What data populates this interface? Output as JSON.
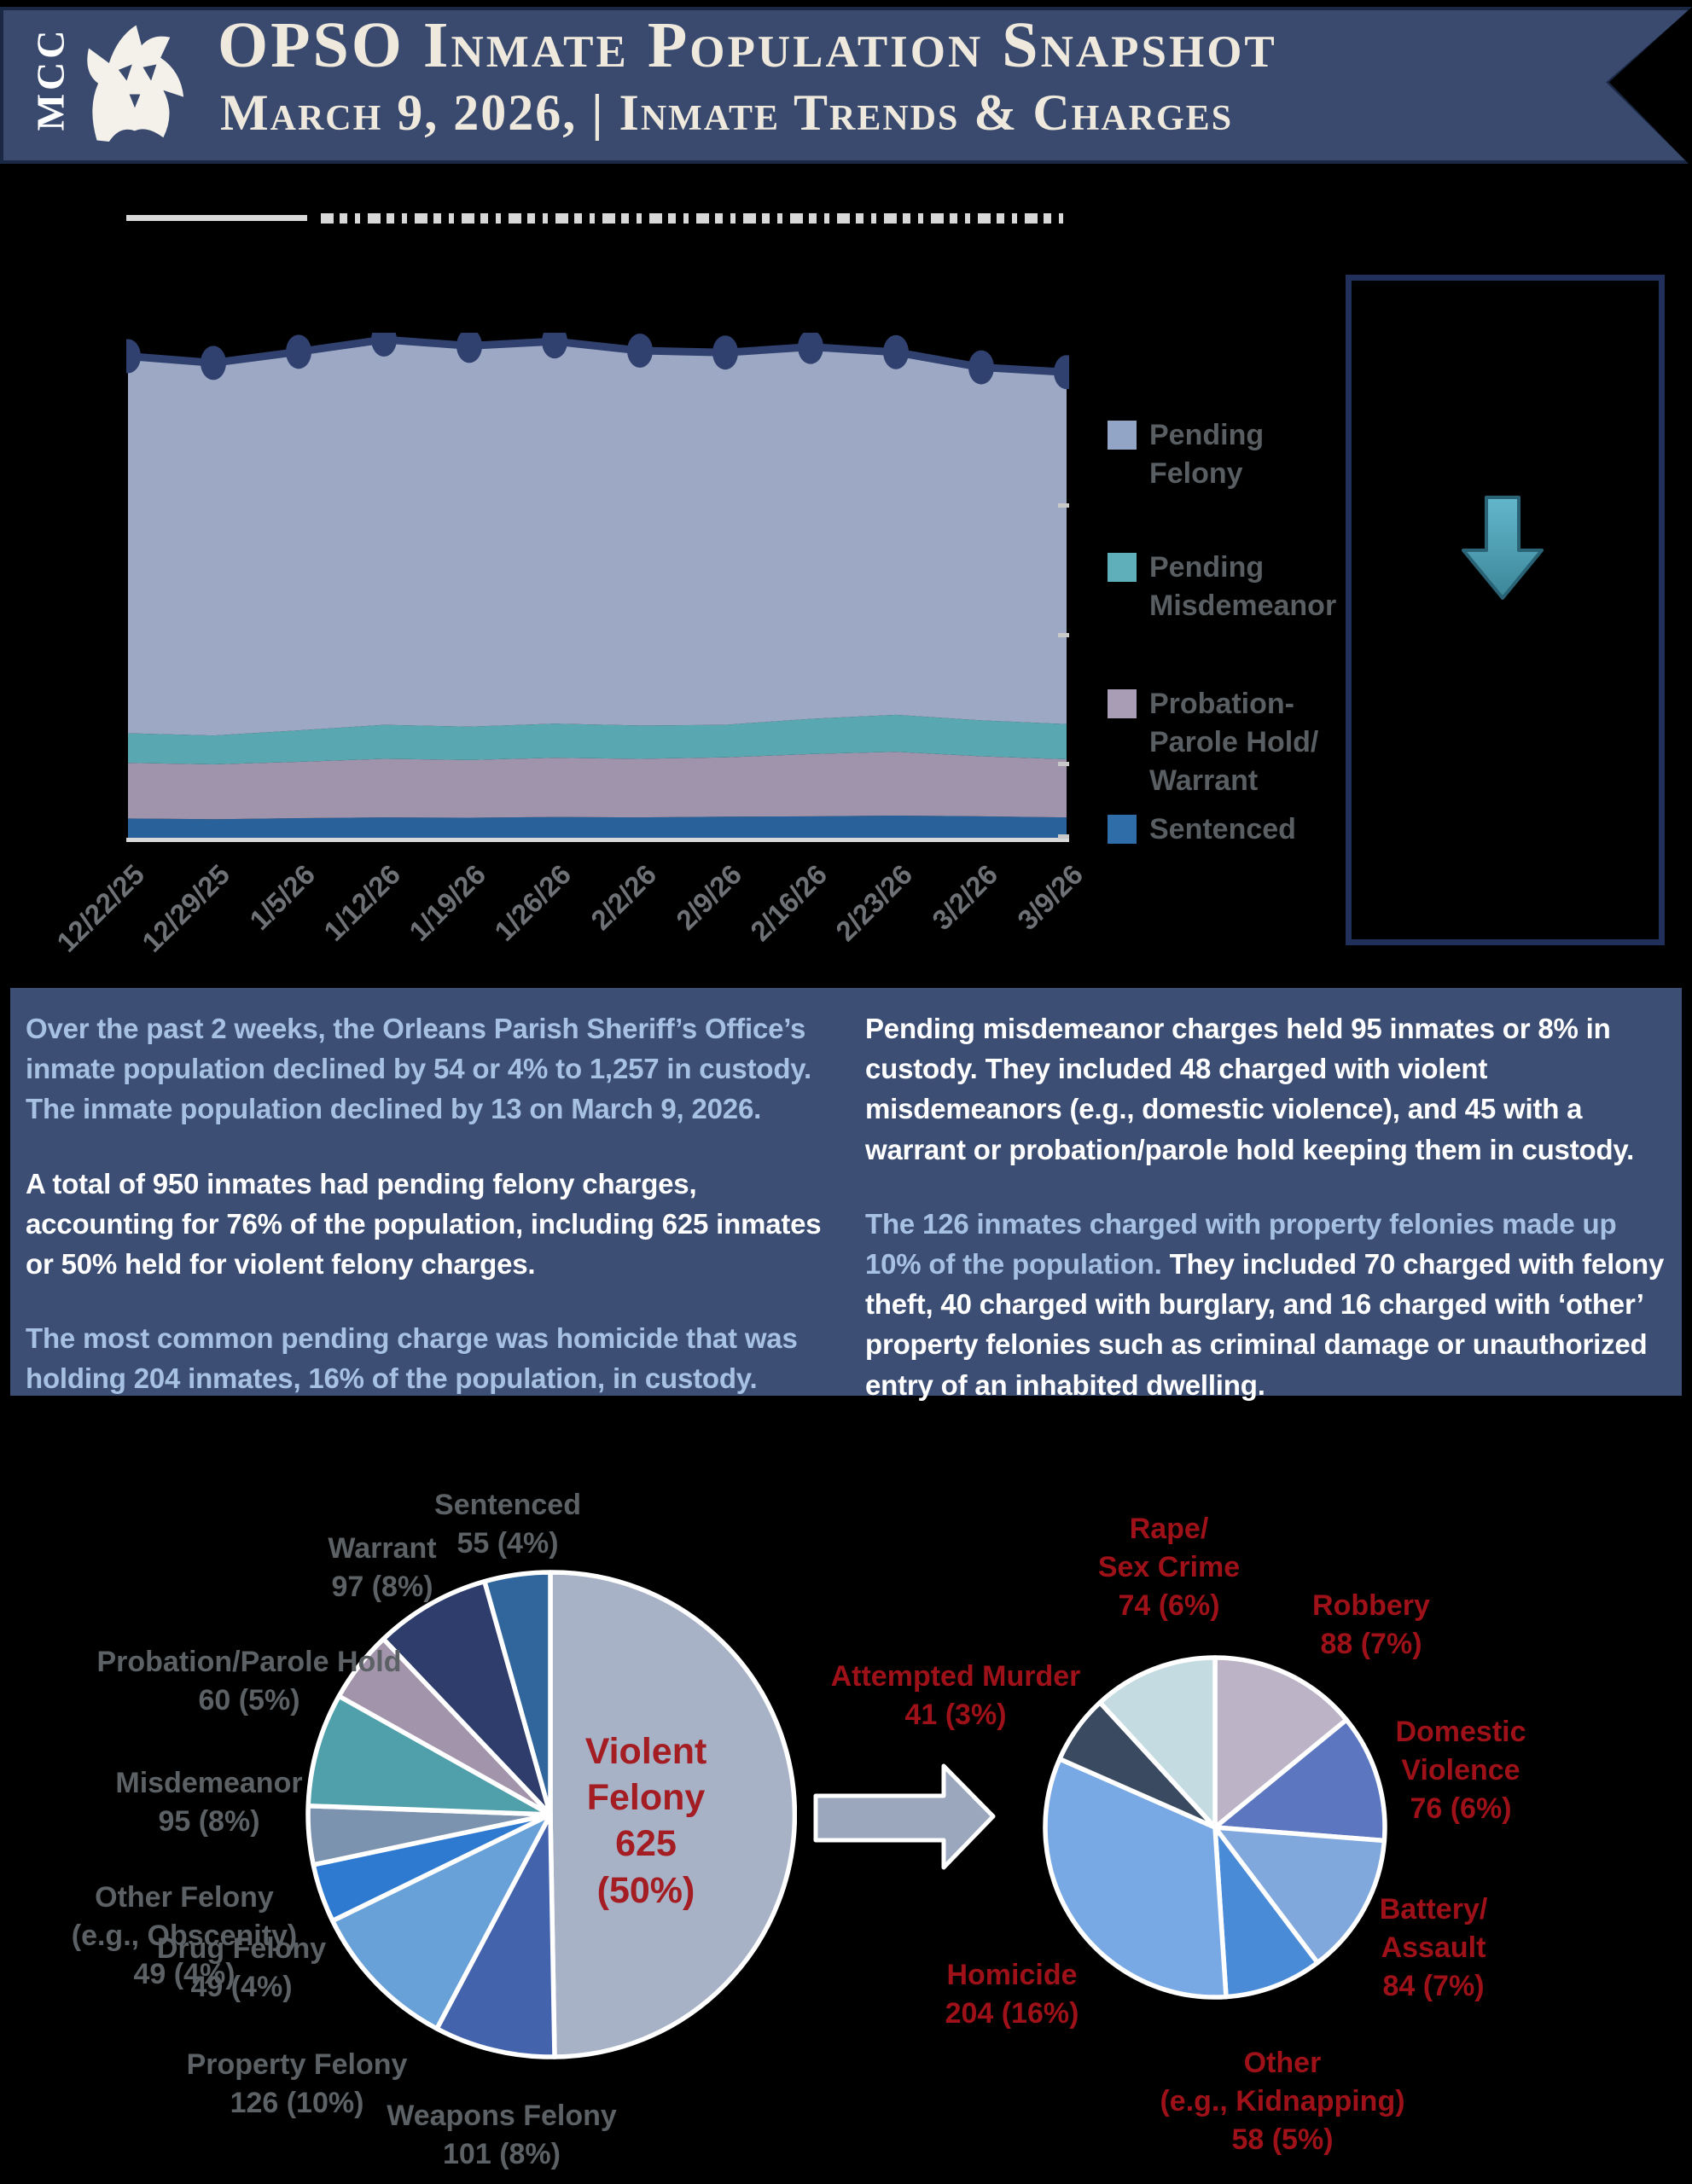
{
  "header": {
    "logo_text": "MCC",
    "title": "OPSO Inmate Population Snapshot",
    "subtitle": "March 9, 2026, | Inmate Trends & Charges",
    "banner_color": "#394a6e",
    "banner_border": "#1b2844"
  },
  "colors": {
    "decline_arrow_top": "#63b7cb",
    "decline_arrow_bottom": "#3c8699",
    "decline_arrow_stroke": "#2a6375",
    "flow_arrow_fill": "#9aa7bd",
    "summary_background": "#3d4e74",
    "summary_light_text": "#a6c1e2",
    "label_gray": "#5c6165",
    "label_red": "#9e1118",
    "center_red": "#a31d22"
  },
  "chart_data": [
    {
      "id": "inmate-trend",
      "type": "area",
      "stacked": true,
      "x": [
        "12/22/25",
        "12/29/25",
        "1/5/26",
        "1/12/26",
        "1/19/26",
        "1/26/26",
        "2/2/26",
        "2/9/26",
        "2/16/26",
        "2/23/26",
        "3/2/26",
        "3/9/26"
      ],
      "series": [
        {
          "name": "Sentenced",
          "color": "#29629b",
          "values": [
            52,
            50,
            53,
            55,
            54,
            56,
            55,
            57,
            58,
            60,
            58,
            55
          ]
        },
        {
          "name": "Probation-Parole Hold/Warrant",
          "color": "#a094ac",
          "values": [
            150,
            148,
            152,
            158,
            156,
            160,
            158,
            160,
            168,
            172,
            162,
            157
          ]
        },
        {
          "name": "Pending Misdemeanor",
          "color": "#58a7b1",
          "values": [
            80,
            78,
            85,
            92,
            90,
            92,
            90,
            88,
            95,
            100,
            97,
            95
          ]
        },
        {
          "name": "Pending Felony",
          "color": "#9da9c4",
          "values": [
            1018,
            1006,
            1022,
            1040,
            1028,
            1032,
            1012,
            1005,
            1004,
            979,
            953,
            950
          ]
        }
      ],
      "total_line": {
        "color": "#30406f",
        "values": [
          1300,
          1282,
          1312,
          1345,
          1328,
          1340,
          1315,
          1310,
          1325,
          1311,
          1270,
          1257
        ]
      },
      "ylim": [
        0,
        1400
      ],
      "grid": false,
      "legend_position": "right"
    },
    {
      "id": "charges-pie",
      "type": "pie",
      "slices": [
        {
          "label": "Violent Felony",
          "value": 625,
          "pct": "50%",
          "color": "#a8b2c7"
        },
        {
          "label": "Weapons Felony",
          "value": 101,
          "pct": "8%",
          "color": "#4463ad"
        },
        {
          "label": "Property Felony",
          "value": 126,
          "pct": "10%",
          "color": "#68a0d8"
        },
        {
          "label": "Drug Felony",
          "value": 49,
          "pct": "4%",
          "color": "#2e7ad1"
        },
        {
          "label": "Other Felony (e.g., Obscenity)",
          "value": 49,
          "pct": "4%",
          "color": "#7c93af"
        },
        {
          "label": "Misdemeanor",
          "value": 95,
          "pct": "8%",
          "color": "#4fa0ab"
        },
        {
          "label": "Probation/Parole Hold",
          "value": 60,
          "pct": "5%",
          "color": "#a294ab"
        },
        {
          "label": "Warrant",
          "value": 97,
          "pct": "8%",
          "color": "#2e3d6b"
        },
        {
          "label": "Sentenced",
          "value": 55,
          "pct": "4%",
          "color": "#31669c"
        }
      ]
    },
    {
      "id": "violent-felony-pie",
      "type": "pie",
      "slices": [
        {
          "label": "Robbery",
          "value": 88,
          "pct": "7%",
          "color": "#bcb3c7"
        },
        {
          "label": "Domestic Violence",
          "value": 76,
          "pct": "6%",
          "color": "#5c77c0"
        },
        {
          "label": "Battery/Assault",
          "value": 84,
          "pct": "7%",
          "color": "#80a8dc"
        },
        {
          "label": "Other (e.g., Kidnapping)",
          "value": 58,
          "pct": "5%",
          "color": "#4a8bd8"
        },
        {
          "label": "Homicide",
          "value": 204,
          "pct": "16%",
          "color": "#79a9e4"
        },
        {
          "label": "Attempted Murder",
          "value": 41,
          "pct": "3%",
          "color": "#3a4a61"
        },
        {
          "label": "Rape/Sex Crime",
          "value": 74,
          "pct": "6%",
          "color": "#c3dbe1"
        }
      ]
    }
  ],
  "legend": [
    {
      "label": "Pending\nFelony",
      "color": "#93a5c7"
    },
    {
      "label": "Pending\nMisdemeanor",
      "color": "#5fafba"
    },
    {
      "label": "Probation-\nParole Hold/\nWarrant",
      "color": "#a89db5"
    },
    {
      "label": "Sentenced",
      "color": "#2f6da8"
    }
  ],
  "summary": {
    "left": [
      {
        "parts": [
          {
            "style": "light",
            "text": "Over the past 2 weeks, the Orleans Parish Sheriff’s Office’s inmate population declined by 54 or 4% to 1,257 in custody. The inmate population declined by 13 on March 9, 2026."
          }
        ]
      },
      {
        "parts": [
          {
            "style": "white",
            "text": "A total of 950 inmates had pending felony charges, accounting for 76% of the population, including 625 inmates or 50% held for violent felony charges."
          }
        ]
      },
      {
        "parts": [
          {
            "style": "light",
            "text": "The most common pending charge was homicide that was holding 204 inmates, 16% of the population, in custody."
          }
        ]
      }
    ],
    "right": [
      {
        "parts": [
          {
            "style": "white",
            "text": "Pending misdemeanor charges held 95 inmates or 8% in custody. They included 48 charged with violent misdemeanors (e.g., domestic violence), and 45 with a warrant or probation/parole hold keeping them in custody."
          }
        ]
      },
      {
        "parts": [
          {
            "style": "light",
            "text": "The 126 inmates charged with property felonies made up 10% of the population."
          },
          {
            "style": "white",
            "text": " They included 70 charged with felony theft, 40 charged with burglary, and 16 charged with ‘other’ property felonies such as criminal damage or unauthorized entry of an inhabited dwelling."
          }
        ]
      }
    ]
  },
  "charges_pie_labels": {
    "sentenced": "Sentenced\n55 (4%)",
    "warrant": "Warrant\n97 (8%)",
    "probation": "Probation/Parole Hold\n60 (5%)",
    "misdemeanor": "Misdemeanor\n95 (8%)",
    "other_felony": "Other Felony\n(e.g., Obscenity)\n49 (4%)",
    "drug": "Drug Felony\n49 (4%)",
    "property": "Property Felony\n126 (10%)",
    "weapons": "Weapons Felony\n101 (8%)",
    "violent_center": "Violent\nFelony\n625\n(50%)"
  },
  "violent_pie_labels": {
    "rape": "Rape/\nSex Crime\n74 (6%)",
    "robbery": "Robbery\n88 (7%)",
    "attempted": "Attempted Murder\n41 (3%)",
    "domestic": "Domestic\nViolence\n76 (6%)",
    "battery": "Battery/\nAssault\n84 (7%)",
    "homicide": "Homicide\n204 (16%)",
    "other": "Other\n(e.g., Kidnapping)\n58 (5%)"
  }
}
